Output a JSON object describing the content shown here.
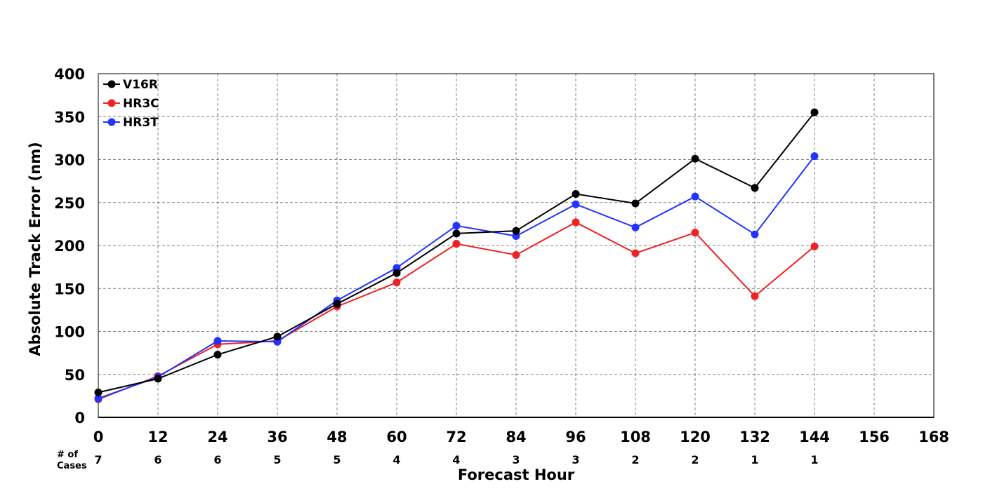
{
  "chart_data": {
    "type": "line",
    "xlabel": "Forecast Hour",
    "ylabel": "Absolute Track Error (nm)",
    "xlim": [
      0,
      168
    ],
    "ylim": [
      0,
      400
    ],
    "x_ticks": [
      0,
      12,
      24,
      36,
      48,
      60,
      72,
      84,
      96,
      108,
      120,
      132,
      144,
      156,
      168
    ],
    "y_ticks": [
      0,
      50,
      100,
      150,
      200,
      250,
      300,
      350,
      400
    ],
    "grid": true,
    "legend_position": "top-left",
    "cases_label": "# of Cases",
    "cases_label_lines": [
      "# of",
      "Cases"
    ],
    "cases": [
      7,
      6,
      6,
      5,
      5,
      4,
      4,
      3,
      3,
      2,
      2,
      1,
      1
    ],
    "x": [
      0,
      12,
      24,
      36,
      48,
      60,
      72,
      84,
      96,
      108,
      120,
      132,
      144
    ],
    "series": [
      {
        "name": "V16R",
        "color": "#000000",
        "values": [
          29,
          45,
          73,
          94,
          132,
          168,
          214,
          217,
          260,
          249,
          301,
          267,
          355
        ]
      },
      {
        "name": "HR3C",
        "color": "#ee2222",
        "values": [
          21,
          48,
          85,
          89,
          129,
          157,
          202,
          189,
          227,
          191,
          215,
          141,
          199
        ]
      },
      {
        "name": "HR3T",
        "color": "#2233ff",
        "values": [
          22,
          47,
          89,
          88,
          136,
          174,
          223,
          211,
          248,
          221,
          257,
          213,
          304
        ]
      }
    ]
  }
}
